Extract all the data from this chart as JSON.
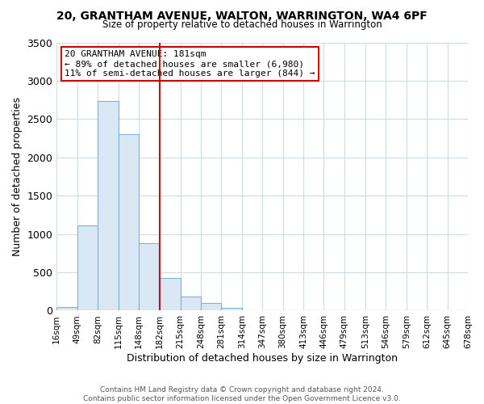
{
  "title": "20, GRANTHAM AVENUE, WALTON, WARRINGTON, WA4 6PF",
  "subtitle": "Size of property relative to detached houses in Warrington",
  "xlabel": "Distribution of detached houses by size in Warrington",
  "ylabel": "Number of detached properties",
  "bar_color": "#dae8f5",
  "bar_edge_color": "#7ab3d4",
  "background_color": "#ffffff",
  "grid_color": "#ccdde8",
  "vline_color": "#cc0000",
  "annotation_title": "20 GRANTHAM AVENUE: 181sqm",
  "annotation_line1": "← 89% of detached houses are smaller (6,980)",
  "annotation_line2": "11% of semi-detached houses are larger (844) →",
  "annotation_box_color": "#cc0000",
  "bin_edges": [
    16,
    49,
    82,
    115,
    148,
    182,
    215,
    248,
    281,
    314,
    347,
    380,
    413,
    446,
    479,
    513,
    546,
    579,
    612,
    645,
    678
  ],
  "bin_labels": [
    "16sqm",
    "49sqm",
    "82sqm",
    "115sqm",
    "148sqm",
    "182sqm",
    "215sqm",
    "248sqm",
    "281sqm",
    "314sqm",
    "347sqm",
    "380sqm",
    "413sqm",
    "446sqm",
    "479sqm",
    "513sqm",
    "546sqm",
    "579sqm",
    "612sqm",
    "645sqm",
    "678sqm"
  ],
  "bar_heights": [
    50,
    1110,
    2740,
    2300,
    880,
    430,
    185,
    95,
    40,
    10,
    5,
    2,
    1,
    0,
    0,
    0,
    0,
    0,
    0,
    0
  ],
  "ylim": [
    0,
    3500
  ],
  "yticks": [
    0,
    500,
    1000,
    1500,
    2000,
    2500,
    3000,
    3500
  ],
  "vline_x": 182,
  "footer1": "Contains HM Land Registry data © Crown copyright and database right 2024.",
  "footer2": "Contains public sector information licensed under the Open Government Licence v3.0."
}
